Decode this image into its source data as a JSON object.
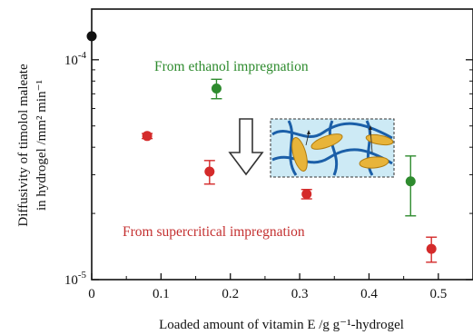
{
  "chart_data": {
    "type": "scatter",
    "title": "",
    "xlabel": "Loaded amount of vitamin E /g g⁻¹-hydrogel",
    "ylabel_line1": "Diffusivity of timolol maleate",
    "ylabel_line2": "in hydrogel /mm² min⁻¹",
    "x_scale": "linear",
    "y_scale": "log",
    "xlim": [
      0,
      0.55
    ],
    "ylim": [
      1e-05,
      0.00017
    ],
    "x_ticks": [
      0,
      0.1,
      0.2,
      0.3,
      0.4,
      0.5
    ],
    "x_tick_labels": [
      "0",
      "0.1",
      "0.2",
      "0.3",
      "0.4",
      "0.5"
    ],
    "y_ticks": [
      {
        "value": 0.0001,
        "mantissa": "10",
        "exponent": "-4"
      },
      {
        "value": 1e-05,
        "mantissa": "10",
        "exponent": "-5"
      }
    ],
    "grid": false,
    "series": [
      {
        "name": "",
        "color": "#111111",
        "points": [
          {
            "x": 0.0,
            "y": 0.000128,
            "err": 0.0
          }
        ]
      },
      {
        "name": "From ethanol impregnation",
        "color": "#2e8b2e",
        "points": [
          {
            "x": 0.18,
            "y": 7.4e-05,
            "err": 7.5e-06
          },
          {
            "x": 0.46,
            "y": 2.8e-05,
            "err": 8.5e-06
          }
        ]
      },
      {
        "name": "From supercritical impregnation",
        "color": "#d42a2a",
        "points": [
          {
            "x": 0.08,
            "y": 4.5e-05,
            "err": 1.2e-06
          },
          {
            "x": 0.17,
            "y": 3.1e-05,
            "err": 3.8e-06
          },
          {
            "x": 0.31,
            "y": 2.45e-05,
            "err": 1.2e-06
          },
          {
            "x": 0.49,
            "y": 1.38e-05,
            "err": 1.8e-06
          }
        ]
      }
    ],
    "annotations": [
      {
        "text": "From ethanol impregnation",
        "color": "#2e8b2e"
      },
      {
        "text": "From supercritical impregnation",
        "color": "#c43030"
      }
    ]
  }
}
